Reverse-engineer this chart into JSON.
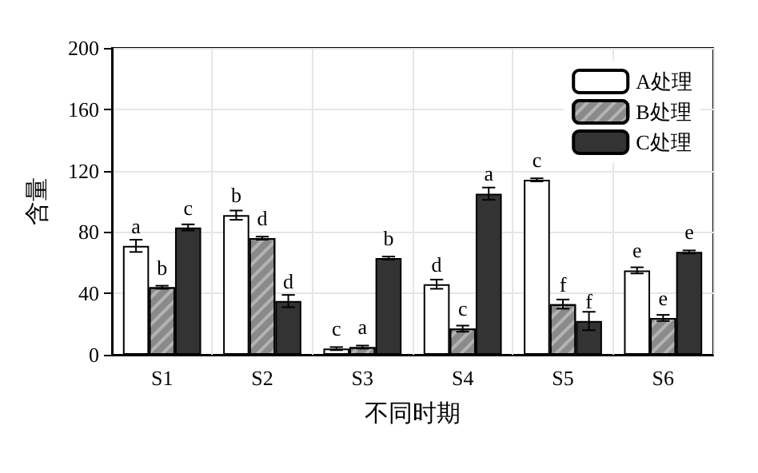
{
  "chart_data": {
    "type": "bar",
    "xlabel": "不同时期",
    "ylabel": "含量",
    "categories": [
      "S1",
      "S2",
      "S3",
      "S4",
      "S5",
      "S6"
    ],
    "series": [
      {
        "name": "A处理",
        "color": "#ffffff",
        "values": [
          71,
          91,
          4,
          46,
          114,
          55
        ],
        "errors": [
          4,
          3,
          1,
          3,
          1,
          2
        ],
        "value_labels": [
          "a",
          "b",
          "c",
          "d",
          "c",
          "e"
        ]
      },
      {
        "name": "B处理",
        "color": "#8a8a8a",
        "values": [
          44,
          76,
          5,
          17,
          33,
          24
        ],
        "errors": [
          1,
          1,
          1,
          2,
          3,
          2
        ],
        "value_labels": [
          "b",
          "d",
          "a",
          "c",
          "f",
          "e"
        ]
      },
      {
        "name": "C处理",
        "color": "#333333",
        "values": [
          83,
          35,
          63,
          105,
          22,
          67
        ],
        "errors": [
          2,
          4,
          1,
          4,
          6,
          1
        ],
        "value_labels": [
          "c",
          "d",
          "b",
          "a",
          "f",
          "e"
        ]
      }
    ],
    "ylim": [
      0,
      200
    ],
    "yticks": [
      0,
      40,
      80,
      120,
      160,
      200
    ],
    "grid": true,
    "legend": "top right"
  }
}
